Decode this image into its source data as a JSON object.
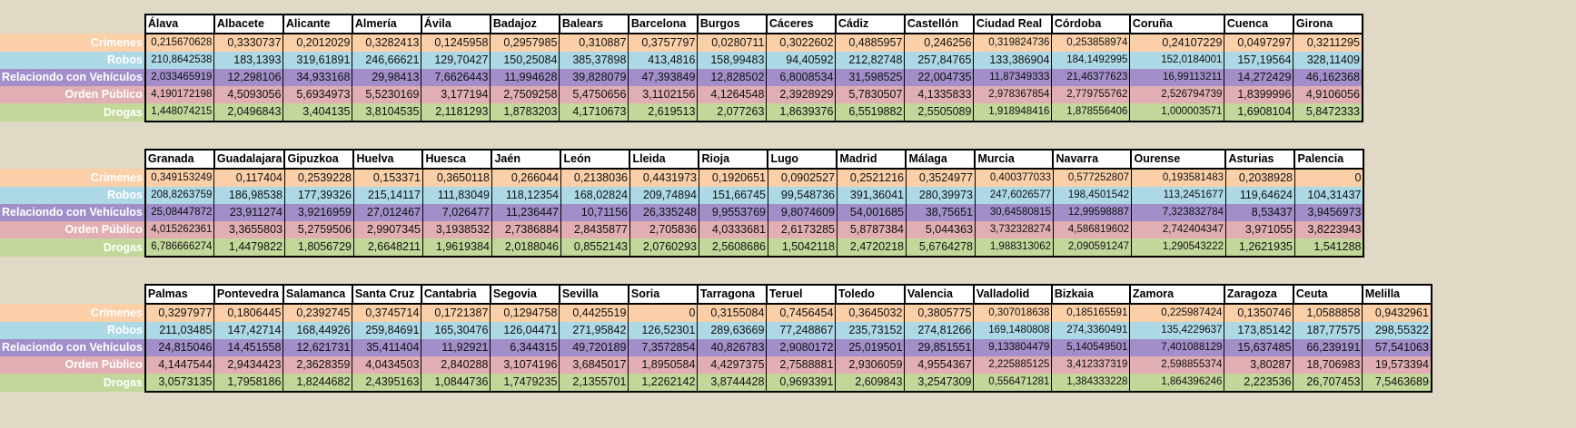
{
  "row_labels": [
    "Crímenes",
    "Robos",
    "Relaciondo con Vehículos",
    "Orden Público",
    "Drogas"
  ],
  "blocks": [
    {
      "provinces": [
        "Álava",
        "Albacete",
        "Alicante",
        "Almería",
        "Ávila",
        "Badajoz",
        "Balears",
        "Barcelona",
        "Burgos",
        "Cáceres",
        "Cádiz",
        "Castellón",
        "Ciudad Real",
        "Córdoba",
        "Coruña",
        "Cuenca",
        "Girona"
      ],
      "rows": [
        [
          "0,215670628",
          "0,3330737",
          "0,2012029",
          "0,3282413",
          "0,1245958",
          "0,2957985",
          "0,310887",
          "0,3757797",
          "0,0280711",
          "0,3022602",
          "0,4885957",
          "0,246256",
          "0,319824736",
          "0,253858974",
          "0,24107229",
          "0,0497297",
          "0,3211295"
        ],
        [
          "210,8642538",
          "183,1393",
          "319,61891",
          "246,66621",
          "129,70427",
          "150,25084",
          "385,37898",
          "413,4816",
          "158,99483",
          "94,40592",
          "212,82748",
          "257,84765",
          "133,386904",
          "184,1492995",
          "152,0184001",
          "157,19564",
          "328,11409"
        ],
        [
          "2,033465919",
          "12,298106",
          "34,933168",
          "29,98413",
          "7,6626443",
          "11,994628",
          "39,828079",
          "47,393849",
          "12,828502",
          "6,8008534",
          "31,598525",
          "22,004735",
          "11,87349333",
          "21,46377623",
          "16,99113211",
          "14,272429",
          "46,162368"
        ],
        [
          "4,190172198",
          "4,5093056",
          "5,6934973",
          "5,5230169",
          "3,177194",
          "2,7509258",
          "5,4750656",
          "3,1102156",
          "4,1264548",
          "2,3928929",
          "5,7830507",
          "4,1335833",
          "2,978367854",
          "2,779755762",
          "2,526794739",
          "1,8399996",
          "4,9106056"
        ],
        [
          "1,448074215",
          "2,0496843",
          "3,404135",
          "3,8104535",
          "2,1181293",
          "1,8783203",
          "4,1710673",
          "2,619513",
          "2,077263",
          "1,8639376",
          "6,5519882",
          "2,5505089",
          "1,918948416",
          "1,878556406",
          "1,000003571",
          "1,6908104",
          "5,8472333"
        ]
      ]
    },
    {
      "provinces": [
        "Granada",
        "Guadalajara",
        "Gipuzkoa",
        "Huelva",
        "Huesca",
        "Jaén",
        "León",
        "Lleida",
        "Rioja",
        "Lugo",
        "Madrid",
        "Málaga",
        "Murcia",
        "Navarra",
        "Ourense",
        "Asturias",
        "Palencia"
      ],
      "rows": [
        [
          "0,349153249",
          "0,117404",
          "0,2539228",
          "0,153371",
          "0,3650118",
          "0,266044",
          "0,2138036",
          "0,4431973",
          "0,1920651",
          "0,0902527",
          "0,2521216",
          "0,3524977",
          "0,400377033",
          "0,577252807",
          "0,193581483",
          "0,2038928",
          "0"
        ],
        [
          "208,8263759",
          "186,98538",
          "177,39326",
          "215,14117",
          "111,83049",
          "118,12354",
          "168,02824",
          "209,74894",
          "151,66745",
          "99,548736",
          "391,36041",
          "280,39973",
          "247,6026577",
          "198,4501542",
          "113,2451677",
          "119,64624",
          "104,31437"
        ],
        [
          "25,08447872",
          "23,911274",
          "3,9216959",
          "27,012467",
          "7,026477",
          "11,236447",
          "10,71156",
          "26,335248",
          "9,9553769",
          "9,8074609",
          "54,001685",
          "38,75651",
          "30,64580815",
          "12,99598887",
          "7,323832784",
          "8,53437",
          "3,9456973"
        ],
        [
          "4,015262361",
          "3,3655803",
          "5,2759506",
          "2,9907345",
          "3,1938532",
          "2,7386884",
          "2,8435877",
          "2,705836",
          "4,0333681",
          "2,6173285",
          "5,8787384",
          "5,044363",
          "3,732328274",
          "4,586819602",
          "2,742404347",
          "3,971055",
          "3,8223943"
        ],
        [
          "6,786666274",
          "1,4479822",
          "1,8056729",
          "2,6648211",
          "1,9619384",
          "2,0188046",
          "0,8552143",
          "2,0760293",
          "2,5608686",
          "1,5042118",
          "2,4720218",
          "5,6764278",
          "1,988313062",
          "2,090591247",
          "1,290543222",
          "1,2621935",
          "1,541288"
        ]
      ]
    },
    {
      "provinces": [
        "Palmas",
        "Pontevedra",
        "Salamanca",
        "Santa Cruz",
        "Cantabria",
        "Segovia",
        "Sevilla",
        "Soria",
        "Tarragona",
        "Teruel",
        "Toledo",
        "Valencia",
        "Valladolid",
        "Bizkaia",
        "Zamora",
        "Zaragoza",
        "Ceuta",
        "Melilla"
      ],
      "rows": [
        [
          "0,3297977",
          "0,1806445",
          "0,2392745",
          "0,3745714",
          "0,1721387",
          "0,1294758",
          "0,4425519",
          "0",
          "0,3155084",
          "0,7456454",
          "0,3645032",
          "0,3805775",
          "0,307018638",
          "0,185165591",
          "0,225987424",
          "0,1350746",
          "1,0588858",
          "0,9432961"
        ],
        [
          "211,03485",
          "147,42714",
          "168,44926",
          "259,84691",
          "165,30476",
          "126,04471",
          "271,95842",
          "126,52301",
          "289,63669",
          "77,248867",
          "235,73152",
          "274,81266",
          "169,1480808",
          "274,3360491",
          "135,4229637",
          "173,85142",
          "187,77575",
          "298,55322"
        ],
        [
          "24,815046",
          "14,451558",
          "12,621731",
          "35,411404",
          "11,92921",
          "6,344315",
          "49,720189",
          "7,3572854",
          "40,826783",
          "2,9080172",
          "25,019501",
          "29,851551",
          "9,133804479",
          "5,140549501",
          "7,401088129",
          "15,637485",
          "66,239191",
          "57,541063"
        ],
        [
          "4,1447544",
          "2,9434423",
          "2,3628359",
          "4,0434503",
          "2,840288",
          "3,1074196",
          "3,6845017",
          "1,8950584",
          "4,4297375",
          "2,7588881",
          "2,9306059",
          "4,9554367",
          "2,225885125",
          "3,412337319",
          "2,598855374",
          "3,80287",
          "18,706983",
          "19,573394"
        ],
        [
          "3,0573135",
          "1,7958186",
          "1,8244682",
          "2,4395163",
          "1,0844736",
          "1,7479235",
          "2,1355701",
          "1,2262142",
          "3,8744428",
          "0,9693391",
          "2,609843",
          "3,2547309",
          "0,556471281",
          "1,384333228",
          "1,864396246",
          "2,223536",
          "26,707453",
          "7,5463689"
        ]
      ]
    }
  ]
}
